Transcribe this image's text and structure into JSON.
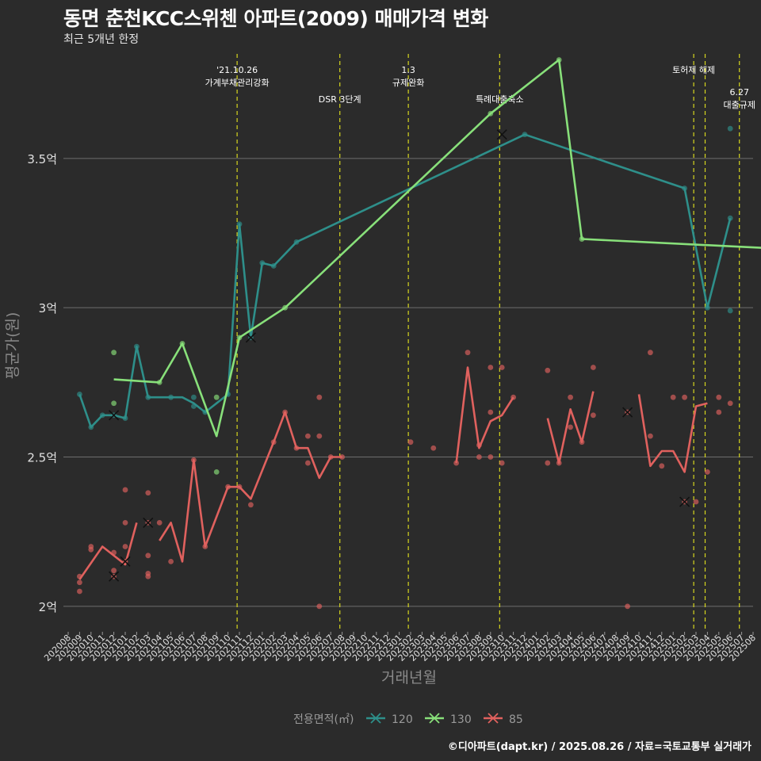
{
  "chart_data": {
    "type": "line",
    "title": "동면 춘천KCC스위첸 아파트(2009) 매매가격 변화",
    "subtitle": "최근 5개년 한정",
    "xlabel": "거래년월",
    "ylabel": "평균가(원)",
    "caption": "©디아파트(dapt.kr) / 2025.08.26 / 자료=국토교통부 실거래가",
    "legend_title": "전용면적(㎡)",
    "legend_position": "bottom",
    "y_ticks": [
      {
        "value": 2.0,
        "label": "2억"
      },
      {
        "value": 2.5,
        "label": "2.5억"
      },
      {
        "value": 3.0,
        "label": "3억"
      },
      {
        "value": 3.5,
        "label": "3.5억"
      }
    ],
    "ylim": [
      1.92,
      3.85
    ],
    "x_months": [
      "202008",
      "202009",
      "202010",
      "202011",
      "202012",
      "202101",
      "202102",
      "202103",
      "202104",
      "202105",
      "202106",
      "202107",
      "202108",
      "202109",
      "202110",
      "202111",
      "202112",
      "202201",
      "202202",
      "202203",
      "202204",
      "202205",
      "202206",
      "202207",
      "202208",
      "202209",
      "202210",
      "202211",
      "202212",
      "202301",
      "202302",
      "202303",
      "202304",
      "202305",
      "202306",
      "202307",
      "202308",
      "202309",
      "202310",
      "202311",
      "202312",
      "202401",
      "202402",
      "202403",
      "202404",
      "202405",
      "202406",
      "202407",
      "202408",
      "202409",
      "202410",
      "202411",
      "202412",
      "202501",
      "202502",
      "202503",
      "202504",
      "202505",
      "202506",
      "202507",
      "202508"
    ],
    "events": [
      {
        "index": 14.8,
        "label": "'21.10.26\n가계부채관리강화",
        "level": 0
      },
      {
        "index": 23.8,
        "label": "DSR 3단계",
        "level": 1
      },
      {
        "index": 29.8,
        "label": "1.3\n규제완화",
        "level": 0
      },
      {
        "index": 37.8,
        "label": "특례대출축소",
        "level": 1
      },
      {
        "index": 54.8,
        "label": "토허제 해제",
        "level": 0
      },
      {
        "index": 55.8,
        "label": "",
        "level": 0
      },
      {
        "index": 58.8,
        "label": "6.27\n대출규제",
        "level": 2
      }
    ],
    "series": [
      {
        "name": "120",
        "color": "#2e8f8a",
        "line": [
          [
            1,
            2.71
          ],
          [
            2,
            2.6
          ],
          [
            3,
            2.64
          ],
          [
            4,
            2.64
          ],
          [
            5,
            2.63
          ],
          [
            6,
            2.87
          ],
          [
            7,
            2.7
          ],
          [
            8,
            2.7
          ],
          [
            9,
            2.7
          ],
          [
            10,
            2.7
          ],
          [
            11,
            2.68
          ],
          [
            12,
            2.65
          ],
          [
            13,
            2.68
          ],
          [
            14,
            2.71
          ],
          [
            15,
            3.28
          ],
          [
            16,
            2.9
          ],
          [
            17,
            3.15
          ],
          [
            18,
            3.14
          ],
          [
            20,
            3.22
          ],
          [
            40,
            3.58
          ],
          [
            54,
            3.4
          ],
          [
            56,
            3.0
          ],
          [
            58,
            3.3
          ]
        ],
        "points": [
          [
            1,
            2.71
          ],
          [
            2,
            2.6
          ],
          [
            3,
            2.64
          ],
          [
            4,
            2.64
          ],
          [
            5,
            2.63
          ],
          [
            6,
            2.87
          ],
          [
            7,
            2.7
          ],
          [
            9,
            2.7
          ],
          [
            11,
            2.7
          ],
          [
            11,
            2.67
          ],
          [
            12,
            2.65
          ],
          [
            14,
            2.71
          ],
          [
            15,
            3.28
          ],
          [
            16,
            2.9
          ],
          [
            17,
            3.15
          ],
          [
            18,
            3.14
          ],
          [
            20,
            3.22
          ],
          [
            40,
            3.58
          ],
          [
            54,
            3.4
          ],
          [
            56,
            3.0
          ],
          [
            58,
            3.6
          ],
          [
            58,
            3.3
          ],
          [
            58,
            2.99
          ]
        ],
        "crosses": [
          [
            4,
            2.64
          ],
          [
            16,
            2.9
          ],
          [
            38,
            3.58
          ]
        ]
      },
      {
        "name": "130",
        "color": "#88e07a",
        "line": [
          [
            4,
            2.76
          ],
          [
            8,
            2.75
          ],
          [
            10,
            2.88
          ],
          [
            13,
            2.57
          ],
          [
            15,
            2.9
          ],
          [
            19,
            3.0
          ],
          [
            37,
            3.65
          ],
          [
            43,
            3.83
          ],
          [
            45,
            3.23
          ],
          [
            61,
            3.2
          ]
        ],
        "points": [
          [
            4,
            2.85
          ],
          [
            4,
            2.68
          ],
          [
            8,
            2.75
          ],
          [
            10,
            2.88
          ],
          [
            13,
            2.7
          ],
          [
            13,
            2.45
          ],
          [
            15,
            2.9
          ],
          [
            19,
            3.0
          ],
          [
            37,
            3.65
          ],
          [
            43,
            3.83
          ],
          [
            45,
            3.23
          ],
          [
            61,
            3.2
          ]
        ],
        "crosses": []
      },
      {
        "name": "85",
        "color": "#e0615e",
        "line": [
          [
            1,
            2.09
          ],
          [
            3,
            2.2
          ],
          [
            5,
            2.14
          ],
          [
            6,
            2.28
          ],
          [
            null,
            null
          ],
          [
            8,
            2.22
          ],
          [
            9,
            2.28
          ],
          [
            10,
            2.15
          ],
          [
            11,
            2.49
          ],
          [
            12,
            2.2
          ],
          [
            14,
            2.4
          ],
          [
            15,
            2.4
          ],
          [
            16,
            2.36
          ],
          [
            18,
            2.55
          ],
          [
            19,
            2.65
          ],
          [
            20,
            2.53
          ],
          [
            21,
            2.53
          ],
          [
            22,
            2.43
          ],
          [
            23,
            2.5
          ],
          [
            24,
            2.5
          ],
          [
            null,
            null
          ],
          [
            34,
            2.48
          ],
          [
            35,
            2.8
          ],
          [
            36,
            2.53
          ],
          [
            37,
            2.62
          ],
          [
            38,
            2.64
          ],
          [
            39,
            2.7
          ],
          [
            null,
            null
          ],
          [
            42,
            2.63
          ],
          [
            43,
            2.48
          ],
          [
            44,
            2.66
          ],
          [
            45,
            2.55
          ],
          [
            46,
            2.72
          ],
          [
            null,
            null
          ],
          [
            50,
            2.71
          ],
          [
            51,
            2.47
          ],
          [
            52,
            2.52
          ],
          [
            53,
            2.52
          ],
          [
            54,
            2.45
          ],
          [
            55,
            2.67
          ],
          [
            56,
            2.68
          ]
        ],
        "points": [
          [
            1,
            2.05
          ],
          [
            1,
            2.08
          ],
          [
            1,
            2.1
          ],
          [
            2,
            2.19
          ],
          [
            2,
            2.2
          ],
          [
            4,
            2.12
          ],
          [
            4,
            2.18
          ],
          [
            4,
            2.1
          ],
          [
            5,
            2.39
          ],
          [
            5,
            2.28
          ],
          [
            5,
            2.2
          ],
          [
            5,
            2.15
          ],
          [
            7,
            2.38
          ],
          [
            7,
            2.28
          ],
          [
            7,
            2.17
          ],
          [
            7,
            2.1
          ],
          [
            7,
            2.11
          ],
          [
            8,
            2.28
          ],
          [
            9,
            2.15
          ],
          [
            11,
            2.49
          ],
          [
            12,
            2.2
          ],
          [
            14,
            2.4
          ],
          [
            15,
            2.4
          ],
          [
            16,
            2.34
          ],
          [
            18,
            2.55
          ],
          [
            19,
            2.65
          ],
          [
            20,
            2.53
          ],
          [
            21,
            2.57
          ],
          [
            21,
            2.48
          ],
          [
            22,
            2.7
          ],
          [
            22,
            2.57
          ],
          [
            22,
            2.0
          ],
          [
            23,
            2.5
          ],
          [
            24,
            2.5
          ],
          [
            30,
            2.55
          ],
          [
            32,
            2.53
          ],
          [
            34,
            2.48
          ],
          [
            35,
            2.85
          ],
          [
            36,
            2.5
          ],
          [
            36,
            2.54
          ],
          [
            37,
            2.8
          ],
          [
            37,
            2.65
          ],
          [
            37,
            2.5
          ],
          [
            38,
            2.8
          ],
          [
            38,
            2.48
          ],
          [
            39,
            2.7
          ],
          [
            42,
            2.79
          ],
          [
            42,
            2.48
          ],
          [
            43,
            2.48
          ],
          [
            44,
            2.7
          ],
          [
            44,
            2.6
          ],
          [
            45,
            2.55
          ],
          [
            46,
            2.8
          ],
          [
            46,
            2.64
          ],
          [
            49,
            2.65
          ],
          [
            49,
            2.0
          ],
          [
            51,
            2.85
          ],
          [
            51,
            2.57
          ],
          [
            52,
            2.47
          ],
          [
            53,
            2.7
          ],
          [
            54,
            2.35
          ],
          [
            54,
            2.7
          ],
          [
            55,
            2.35
          ],
          [
            56,
            2.45
          ],
          [
            57,
            2.7
          ],
          [
            57,
            2.65
          ],
          [
            58,
            2.68
          ]
        ],
        "crosses": [
          [
            4,
            2.1
          ],
          [
            5,
            2.15
          ],
          [
            7,
            2.28
          ],
          [
            49,
            2.65
          ],
          [
            54,
            2.35
          ]
        ]
      }
    ]
  }
}
